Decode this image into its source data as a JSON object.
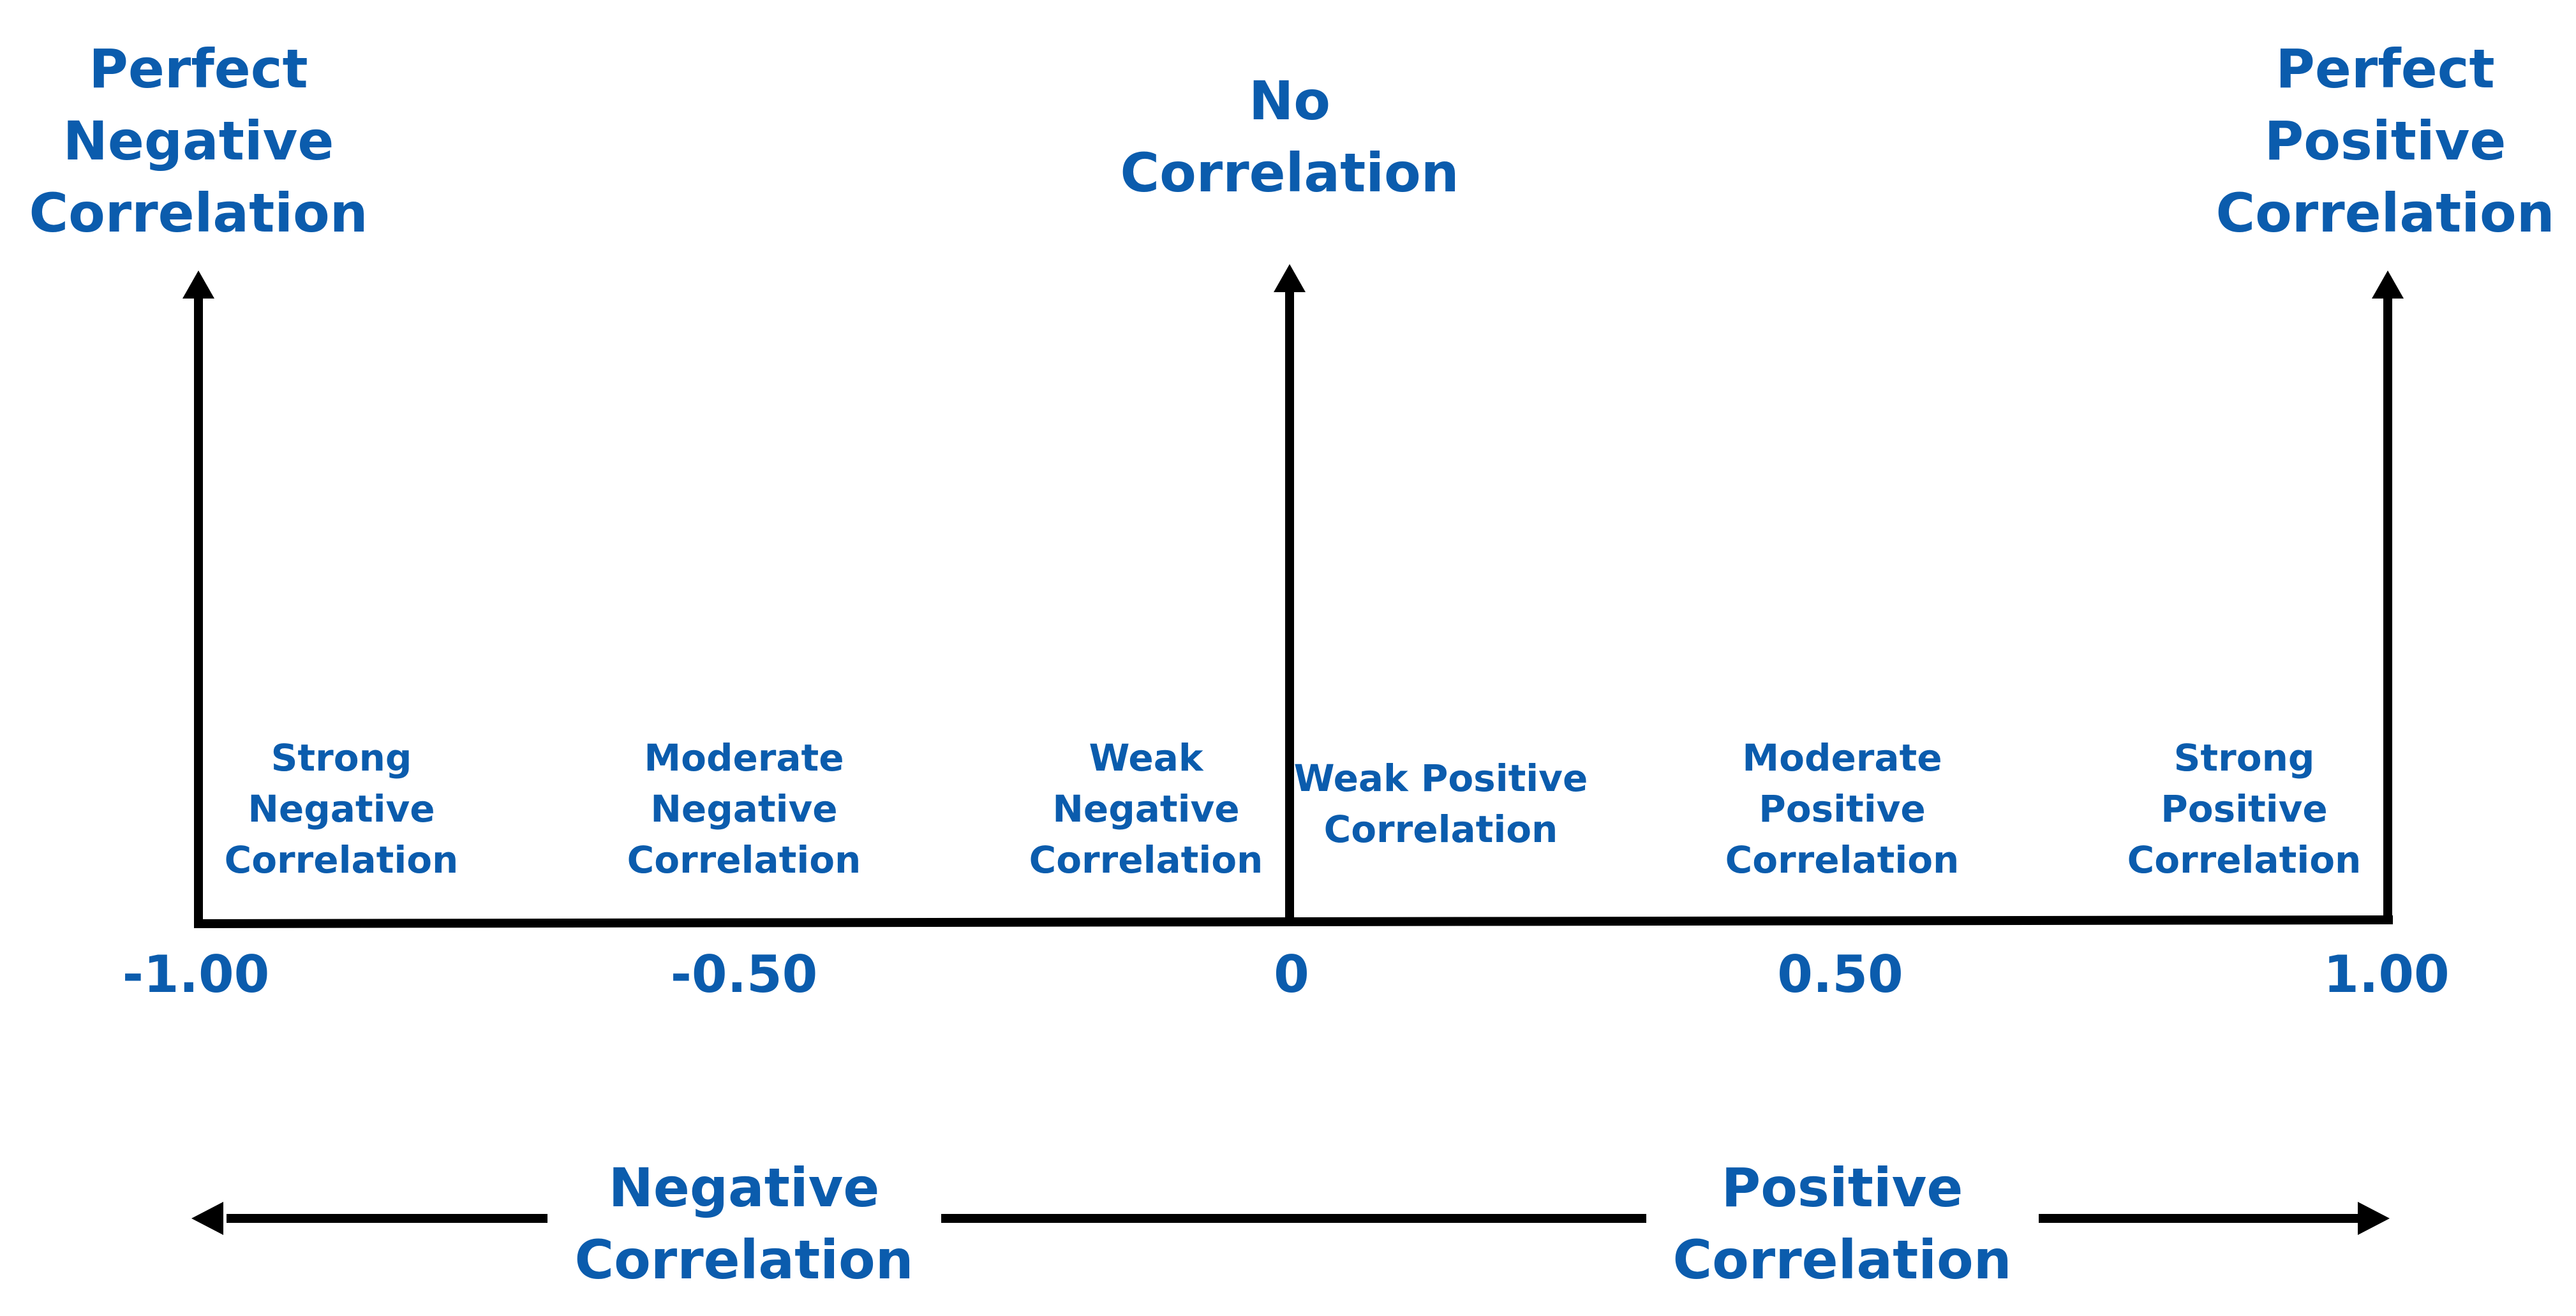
{
  "colors": {
    "text": "#0b5cad",
    "lines": "#000000",
    "background": "#ffffff"
  },
  "headings": {
    "perfect_negative": "Perfect\nNegative\nCorrelation",
    "no_correlation": "No\nCorrelation",
    "perfect_positive": "Perfect\nPositive\nCorrelation"
  },
  "ranges": {
    "strong_negative": "Strong\nNegative\nCorrelation",
    "moderate_negative": "Moderate\nNegative\nCorrelation",
    "weak_negative": "Weak\nNegative\nCorrelation",
    "weak_positive": "Weak Positive\nCorrelation",
    "moderate_positive": "Moderate\nPositive\nCorrelation",
    "strong_positive": "Strong\nPositive\nCorrelation"
  },
  "scale": {
    "ticks": [
      "-1.00",
      "-0.50",
      "0",
      "0.50",
      "1.00"
    ]
  },
  "directions": {
    "negative": "Negative\nCorrelation",
    "positive": "Positive\nCorrelation"
  }
}
